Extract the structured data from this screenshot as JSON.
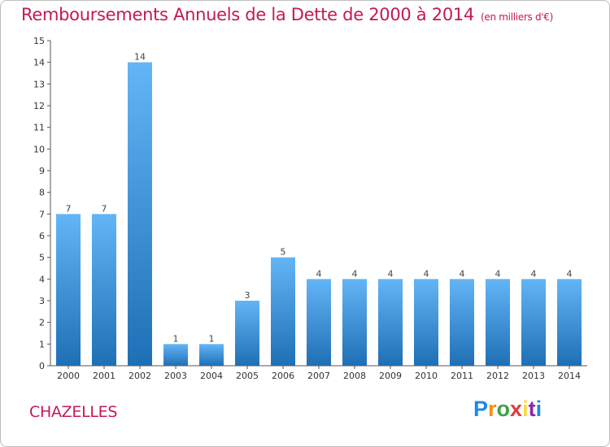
{
  "header": {
    "title": "Remboursements Annuels de la Dette de 2000 à 2014",
    "unit": "(en milliers d'€)"
  },
  "footer": {
    "commune": "CHAZELLES",
    "logo_letters": [
      "P",
      "r",
      "o",
      "x",
      "i",
      "t",
      "i"
    ]
  },
  "colors": {
    "title": "#c2185b",
    "bar_top": "#64b5f6",
    "bar_bottom": "#1e6fb5"
  },
  "chart_data": {
    "type": "bar",
    "title": "Remboursements Annuels de la Dette de 2000 à 2014",
    "xlabel": "",
    "ylabel": "",
    "categories": [
      "2000",
      "2001",
      "2002",
      "2003",
      "2004",
      "2005",
      "2006",
      "2007",
      "2008",
      "2009",
      "2010",
      "2011",
      "2012",
      "2013",
      "2014"
    ],
    "values": [
      7,
      7,
      14,
      1,
      1,
      3,
      5,
      4,
      4,
      4,
      4,
      4,
      4,
      4,
      4
    ],
    "ylim": [
      0,
      15
    ],
    "yticks": [
      0,
      1,
      2,
      3,
      4,
      5,
      6,
      7,
      8,
      9,
      10,
      11,
      12,
      13,
      14,
      15
    ],
    "grid": false,
    "legend": "none"
  }
}
